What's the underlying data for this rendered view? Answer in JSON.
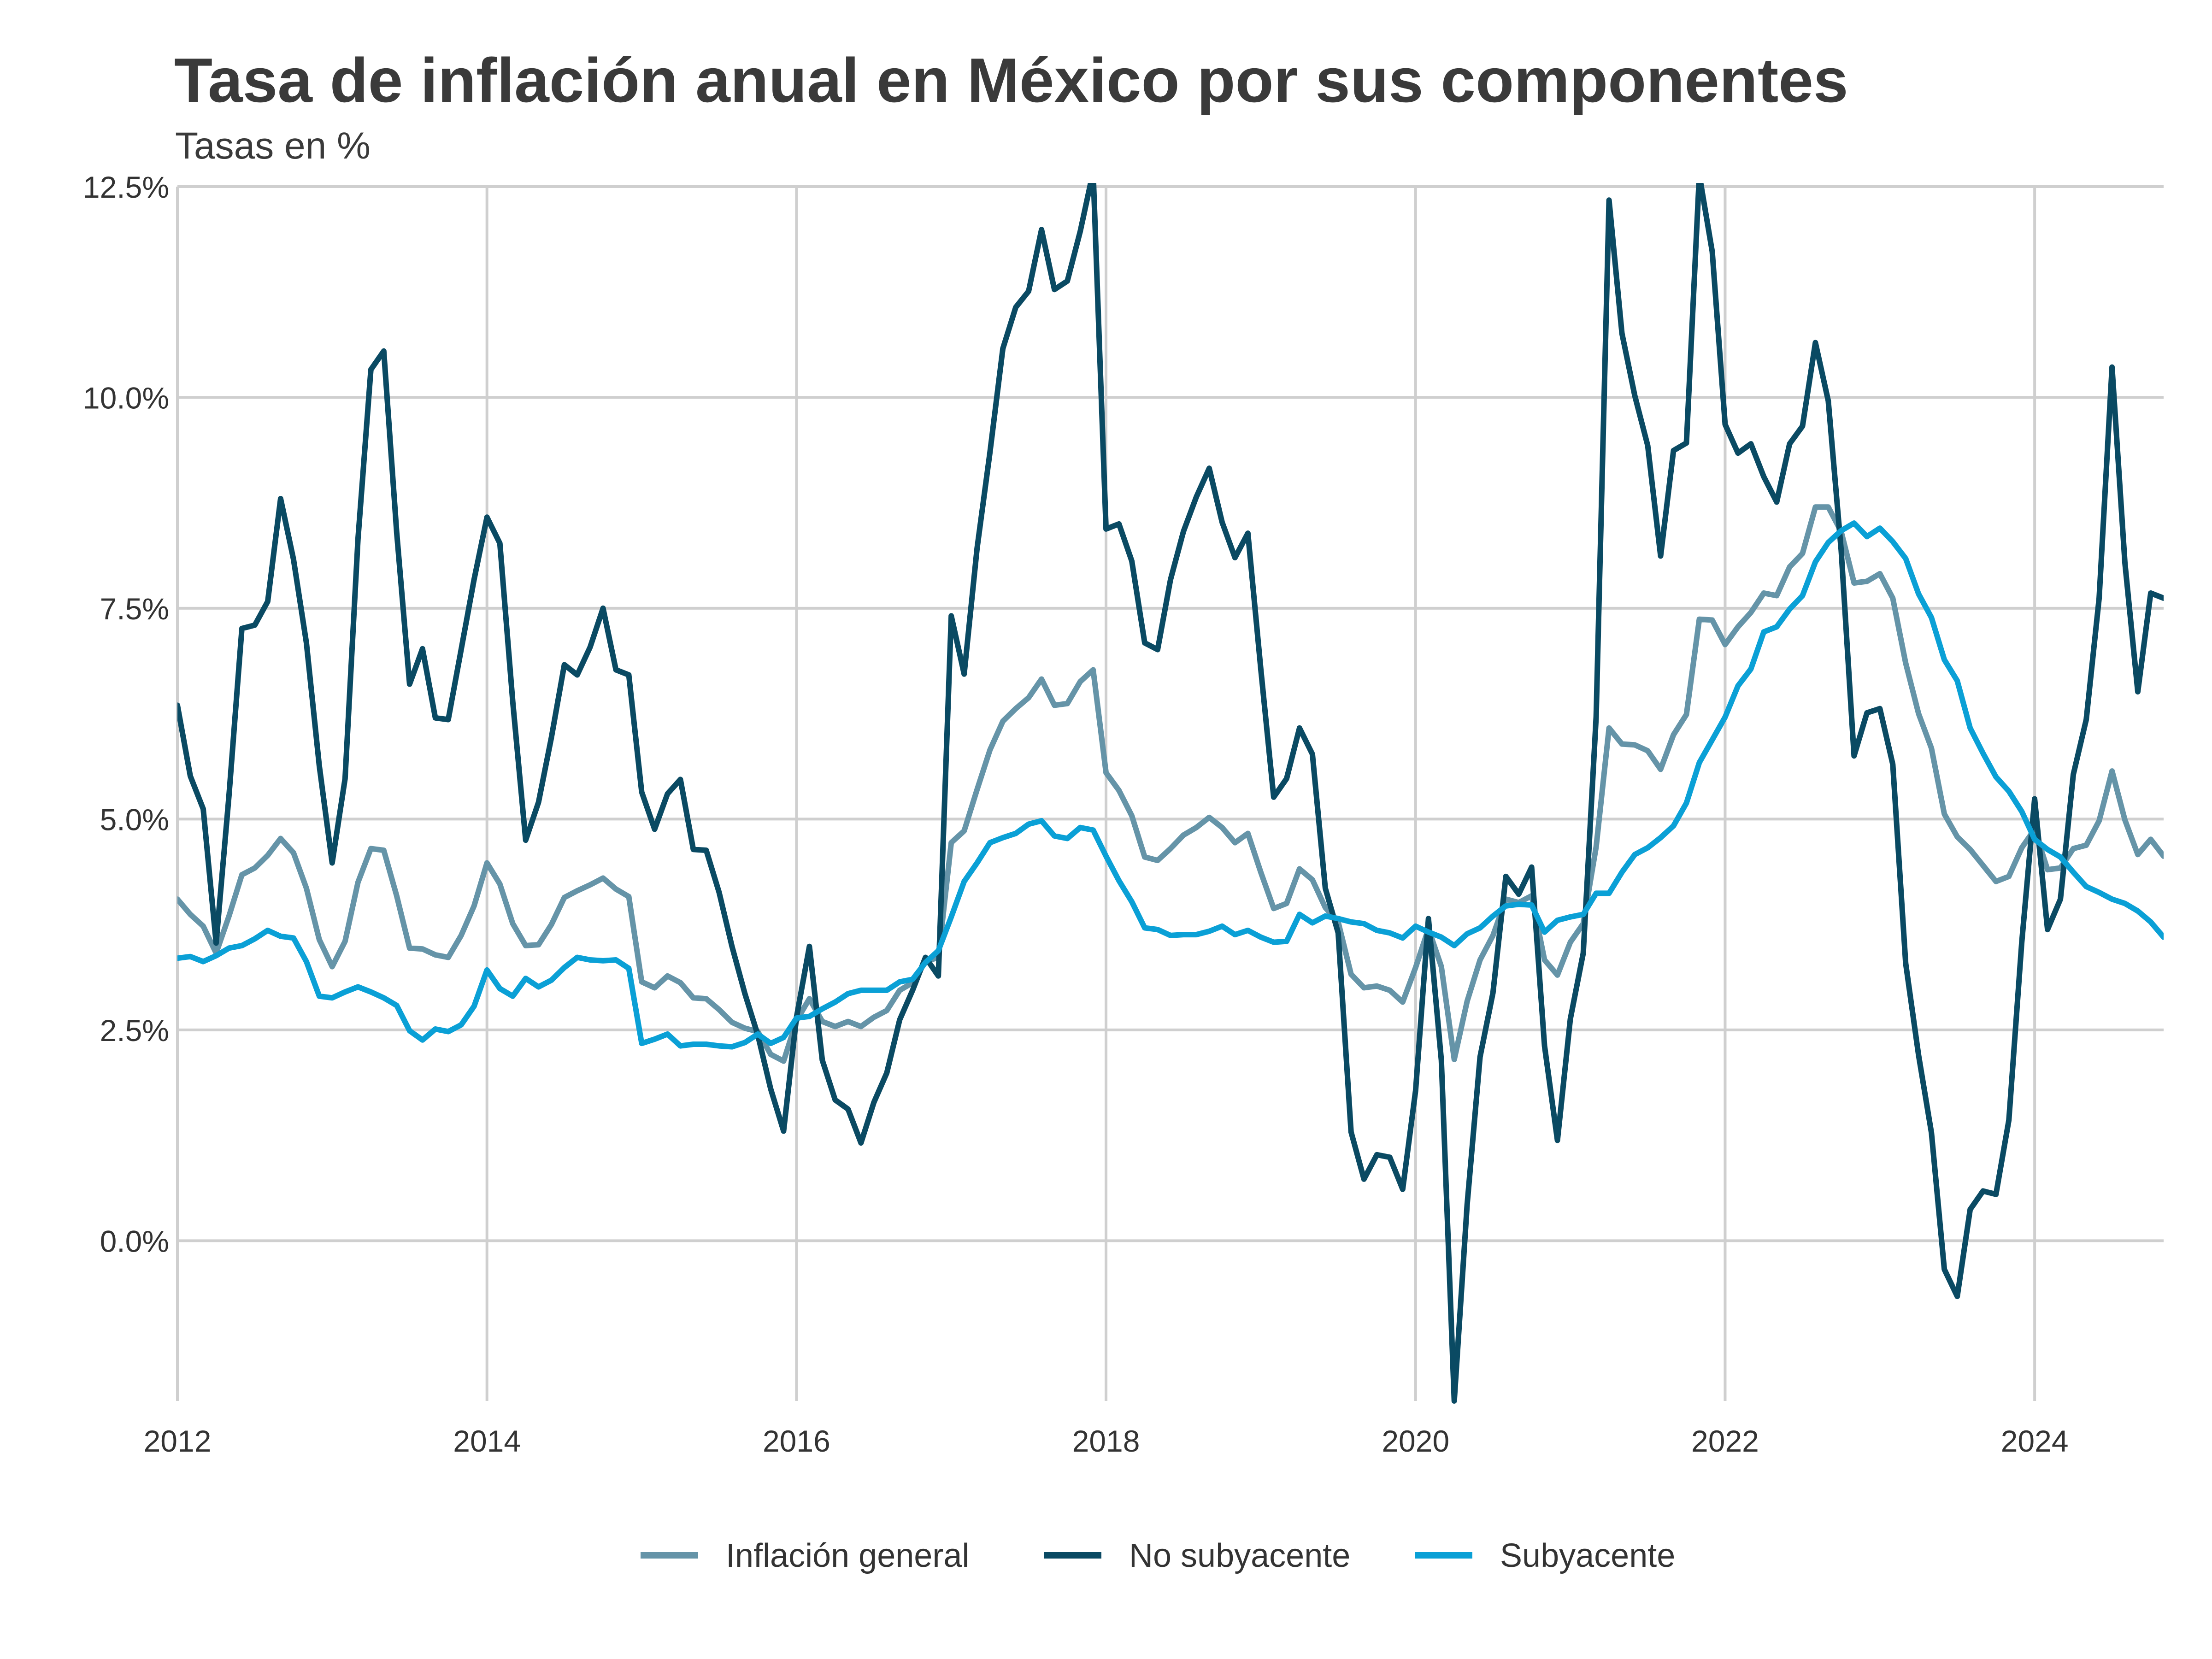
{
  "chart_data": {
    "type": "line",
    "title": "Tasa de inflación anual en México por sus componentes",
    "subtitle": "Tasas en %",
    "xlabel": "",
    "ylabel": "",
    "x_start": "2012-01",
    "x_frequency": "monthly",
    "xlim": [
      2012.0,
      2024.8333
    ],
    "ylim": [
      -1.9,
      12.5
    ],
    "x_ticks": [
      2012,
      2014,
      2016,
      2018,
      2020,
      2022,
      2024
    ],
    "x_tick_labels": [
      "2012",
      "2014",
      "2016",
      "2018",
      "2020",
      "2022",
      "2024"
    ],
    "y_ticks": [
      0.0,
      2.5,
      5.0,
      7.5,
      10.0,
      12.5
    ],
    "y_tick_labels": [
      "0.0%",
      "2.5%",
      "5.0%",
      "7.5%",
      "10.0%",
      "12.5%"
    ],
    "grid": true,
    "legend_position": "bottom",
    "series": [
      {
        "name": "Inflación general",
        "color": "#6594a8",
        "values": [
          4.05,
          3.87,
          3.73,
          3.41,
          3.85,
          4.34,
          4.42,
          4.57,
          4.77,
          4.6,
          4.18,
          3.57,
          3.25,
          3.55,
          4.25,
          4.65,
          4.63,
          4.09,
          3.47,
          3.46,
          3.39,
          3.36,
          3.62,
          3.97,
          4.48,
          4.23,
          3.76,
          3.5,
          3.51,
          3.75,
          4.07,
          4.15,
          4.22,
          4.3,
          4.17,
          4.08,
          3.07,
          3.0,
          3.14,
          3.06,
          2.88,
          2.87,
          2.74,
          2.59,
          2.52,
          2.48,
          2.21,
          2.13,
          2.61,
          2.87,
          2.6,
          2.54,
          2.6,
          2.54,
          2.65,
          2.73,
          2.97,
          3.06,
          3.31,
          3.36,
          4.72,
          4.86,
          5.35,
          5.82,
          6.16,
          6.31,
          6.44,
          6.66,
          6.35,
          6.37,
          6.63,
          6.77,
          5.55,
          5.34,
          5.04,
          4.55,
          4.51,
          4.65,
          4.81,
          4.9,
          5.02,
          4.9,
          4.72,
          4.83,
          4.37,
          3.94,
          4.0,
          4.41,
          4.28,
          3.95,
          3.78,
          3.16,
          3.0,
          3.02,
          2.97,
          2.83,
          3.24,
          3.7,
          3.25,
          2.15,
          2.84,
          3.33,
          3.62,
          4.05,
          4.01,
          4.09,
          3.33,
          3.15,
          3.54,
          3.76,
          4.67,
          6.08,
          5.89,
          5.88,
          5.81,
          5.59,
          6.0,
          6.24,
          7.37,
          7.36,
          7.07,
          7.28,
          7.45,
          7.68,
          7.65,
          7.99,
          8.15,
          8.7,
          8.7,
          8.41,
          7.8,
          7.82,
          7.91,
          7.62,
          6.85,
          6.25,
          5.84,
          5.06,
          4.79,
          4.64,
          4.45,
          4.26,
          4.32,
          4.66,
          4.88,
          4.4,
          4.42,
          4.65,
          4.69,
          4.98,
          5.57,
          4.99,
          4.58,
          4.76,
          4.56
        ]
      },
      {
        "name": "No subyacente",
        "color": "#0a4a63",
        "values": [
          6.35,
          5.51,
          5.12,
          3.53,
          5.28,
          7.26,
          7.3,
          7.58,
          8.8,
          8.08,
          7.09,
          5.63,
          4.48,
          5.48,
          8.32,
          10.33,
          10.55,
          8.4,
          6.6,
          7.02,
          6.2,
          6.18,
          7.01,
          7.84,
          8.58,
          8.27,
          6.39,
          4.75,
          5.2,
          5.97,
          6.83,
          6.71,
          7.04,
          7.5,
          6.77,
          6.71,
          5.32,
          4.88,
          5.3,
          5.47,
          4.64,
          4.63,
          4.13,
          3.49,
          2.93,
          2.44,
          1.8,
          1.3,
          2.65,
          3.49,
          2.14,
          1.67,
          1.56,
          1.16,
          1.64,
          1.99,
          2.62,
          2.97,
          3.36,
          3.14,
          7.41,
          6.72,
          8.21,
          9.35,
          10.58,
          11.07,
          11.26,
          11.99,
          11.28,
          11.38,
          11.97,
          12.68,
          8.44,
          8.5,
          8.06,
          7.09,
          7.01,
          7.84,
          8.41,
          8.82,
          9.16,
          8.52,
          8.1,
          8.39,
          6.78,
          5.26,
          5.48,
          6.08,
          5.77,
          4.18,
          3.65,
          1.29,
          0.73,
          1.02,
          0.99,
          0.61,
          1.78,
          3.82,
          2.14,
          -1.9,
          0.43,
          2.18,
          2.94,
          4.32,
          4.11,
          4.43,
          2.31,
          1.19,
          2.63,
          3.41,
          6.21,
          12.34,
          10.76,
          10.02,
          9.43,
          8.12,
          9.37,
          9.46,
          12.64,
          11.73,
          9.68,
          9.34,
          9.45,
          9.06,
          8.76,
          9.45,
          9.66,
          10.65,
          9.96,
          8.19,
          5.75,
          6.26,
          6.31,
          5.65,
          3.29,
          2.2,
          1.28,
          -0.34,
          -0.66,
          0.37,
          0.59,
          0.55,
          1.43,
          3.54,
          5.24,
          3.69,
          4.05,
          5.53,
          6.18,
          7.62,
          10.36,
          8.04,
          6.51,
          7.68,
          7.62
        ]
      },
      {
        "name": "Subyacente",
        "color": "#0aa0d6",
        "values": [
          3.35,
          3.37,
          3.31,
          3.38,
          3.47,
          3.5,
          3.58,
          3.68,
          3.61,
          3.59,
          3.31,
          2.9,
          2.88,
          2.95,
          3.01,
          2.95,
          2.88,
          2.79,
          2.49,
          2.38,
          2.51,
          2.48,
          2.56,
          2.78,
          3.21,
          2.99,
          2.9,
          3.11,
          3.01,
          3.09,
          3.24,
          3.36,
          3.33,
          3.32,
          3.33,
          3.23,
          2.34,
          2.39,
          2.45,
          2.31,
          2.33,
          2.33,
          2.31,
          2.3,
          2.35,
          2.45,
          2.34,
          2.41,
          2.64,
          2.66,
          2.75,
          2.83,
          2.93,
          2.97,
          2.97,
          2.97,
          3.07,
          3.1,
          3.3,
          3.44,
          3.84,
          4.26,
          4.48,
          4.72,
          4.78,
          4.83,
          4.94,
          4.98,
          4.8,
          4.77,
          4.9,
          4.87,
          4.56,
          4.27,
          4.02,
          3.71,
          3.69,
          3.62,
          3.63,
          3.63,
          3.67,
          3.73,
          3.63,
          3.68,
          3.6,
          3.54,
          3.55,
          3.87,
          3.77,
          3.85,
          3.82,
          3.78,
          3.76,
          3.68,
          3.65,
          3.59,
          3.73,
          3.66,
          3.6,
          3.5,
          3.64,
          3.71,
          3.85,
          3.97,
          3.99,
          3.98,
          3.66,
          3.8,
          3.84,
          3.87,
          4.12,
          4.12,
          4.37,
          4.58,
          4.66,
          4.78,
          4.92,
          5.19,
          5.67,
          5.94,
          6.21,
          6.58,
          6.78,
          7.22,
          7.28,
          7.49,
          7.65,
          8.05,
          8.28,
          8.42,
          8.51,
          8.35,
          8.45,
          8.29,
          8.09,
          7.67,
          7.39,
          6.89,
          6.64,
          6.08,
          5.78,
          5.5,
          5.33,
          5.09,
          4.76,
          4.64,
          4.55,
          4.37,
          4.2,
          4.13,
          4.05,
          4.0,
          3.91,
          3.78,
          3.6
        ]
      }
    ]
  }
}
